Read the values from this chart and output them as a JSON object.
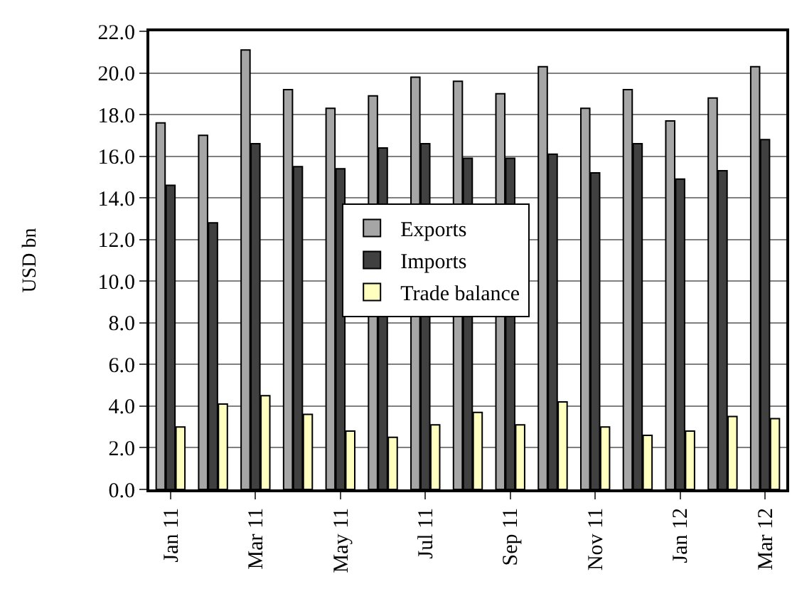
{
  "chart_data": {
    "type": "bar",
    "ylabel": "USD bn",
    "categories": [
      "Jan 11",
      null,
      "Mar 11",
      null,
      "May 11",
      null,
      "Jul 11",
      null,
      "Sep 11",
      null,
      "Nov 11",
      null,
      "Jan 12",
      null,
      "Mar 12"
    ],
    "series": [
      {
        "name": "Exports",
        "color": "#a6a6a6",
        "values": [
          17.6,
          17.0,
          21.1,
          19.2,
          18.3,
          18.9,
          19.8,
          19.6,
          19.0,
          20.3,
          18.3,
          19.2,
          17.7,
          18.8,
          20.3
        ]
      },
      {
        "name": "Imports",
        "color": "#404040",
        "values": [
          14.6,
          12.8,
          16.6,
          15.5,
          15.4,
          16.4,
          16.6,
          15.9,
          15.9,
          16.1,
          15.2,
          16.6,
          14.9,
          15.3,
          16.8
        ]
      },
      {
        "name": "Trade balance",
        "color": "#ffffc0",
        "values": [
          3.0,
          4.1,
          4.5,
          3.6,
          2.8,
          2.5,
          3.1,
          3.7,
          3.1,
          4.2,
          3.0,
          2.6,
          2.8,
          3.5,
          3.4
        ]
      }
    ],
    "ylim": [
      0,
      22
    ],
    "yticks": [
      {
        "value": 0,
        "label": "0.0"
      },
      {
        "value": 2,
        "label": "2.0"
      },
      {
        "value": 4,
        "label": "4.0"
      },
      {
        "value": 6,
        "label": "6.0"
      },
      {
        "value": 8,
        "label": "8.0"
      },
      {
        "value": 10,
        "label": "10.0"
      },
      {
        "value": 12,
        "label": "12.0"
      },
      {
        "value": 14,
        "label": "14.0"
      },
      {
        "value": 16,
        "label": "16.0"
      },
      {
        "value": 18,
        "label": "18.0"
      },
      {
        "value": 20,
        "label": "20.0"
      },
      {
        "value": 22,
        "label": "22.0"
      }
    ],
    "grid": "y",
    "legend": "center"
  }
}
